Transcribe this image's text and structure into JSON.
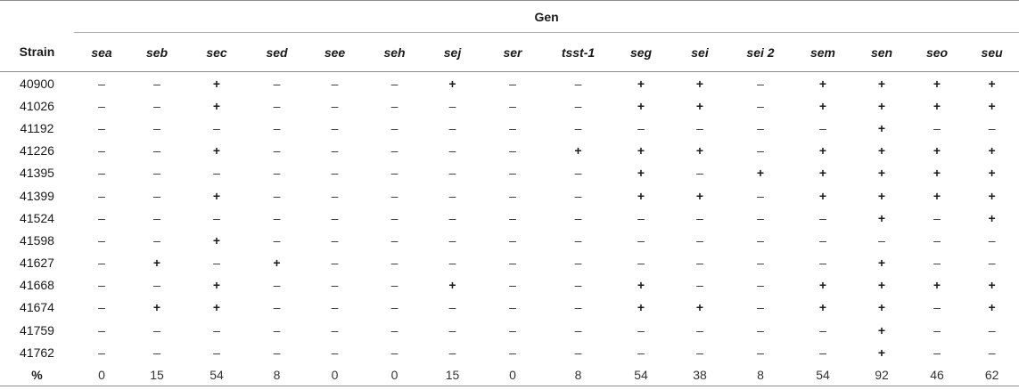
{
  "table": {
    "group_header": "Gen",
    "strain_header": "Strain",
    "genes": [
      "sea",
      "seb",
      "sec",
      "sed",
      "see",
      "seh",
      "sej",
      "ser",
      "tsst-1",
      "seg",
      "sei",
      "sei 2",
      "sem",
      "sen",
      "seo",
      "seu"
    ],
    "rows": [
      {
        "strain": "40900",
        "cells": [
          "–",
          "–",
          "+",
          "–",
          "–",
          "–",
          "+",
          "–",
          "–",
          "+",
          "+",
          "–",
          "+",
          "+",
          "+",
          "+"
        ]
      },
      {
        "strain": "41026",
        "cells": [
          "–",
          "–",
          "+",
          "–",
          "–",
          "–",
          "–",
          "–",
          "–",
          "+",
          "+",
          "–",
          "+",
          "+",
          "+",
          "+"
        ]
      },
      {
        "strain": "41192",
        "cells": [
          "–",
          "–",
          "–",
          "–",
          "–",
          "–",
          "–",
          "–",
          "–",
          "–",
          "–",
          "–",
          "–",
          "+",
          "–",
          "–"
        ]
      },
      {
        "strain": "41226",
        "cells": [
          "–",
          "–",
          "+",
          "–",
          "–",
          "–",
          "–",
          "–",
          "+",
          "+",
          "+",
          "–",
          "+",
          "+",
          "+",
          "+"
        ]
      },
      {
        "strain": "41395",
        "cells": [
          "–",
          "–",
          "–",
          "–",
          "–",
          "–",
          "–",
          "–",
          "–",
          "+",
          "–",
          "+",
          "+",
          "+",
          "+",
          "+"
        ]
      },
      {
        "strain": "41399",
        "cells": [
          "–",
          "–",
          "+",
          "–",
          "–",
          "–",
          "–",
          "–",
          "–",
          "+",
          "+",
          "–",
          "+",
          "+",
          "+",
          "+"
        ]
      },
      {
        "strain": "41524",
        "cells": [
          "–",
          "–",
          "–",
          "–",
          "–",
          "–",
          "–",
          "–",
          "–",
          "–",
          "–",
          "–",
          "–",
          "+",
          "–",
          "+"
        ]
      },
      {
        "strain": "41598",
        "cells": [
          "–",
          "–",
          "+",
          "–",
          "–",
          "–",
          "–",
          "–",
          "–",
          "–",
          "–",
          "–",
          "–",
          "–",
          "–",
          "–"
        ]
      },
      {
        "strain": "41627",
        "cells": [
          "–",
          "+",
          "–",
          "+",
          "–",
          "–",
          "–",
          "–",
          "–",
          "–",
          "–",
          "–",
          "–",
          "+",
          "–",
          "–"
        ]
      },
      {
        "strain": "41668",
        "cells": [
          "–",
          "–",
          "+",
          "–",
          "–",
          "–",
          "+",
          "–",
          "–",
          "+",
          "–",
          "–",
          "+",
          "+",
          "+",
          "+"
        ]
      },
      {
        "strain": "41674",
        "cells": [
          "–",
          "+",
          "+",
          "–",
          "–",
          "–",
          "–",
          "–",
          "–",
          "+",
          "+",
          "–",
          "+",
          "+",
          "–",
          "+"
        ]
      },
      {
        "strain": "41759",
        "cells": [
          "–",
          "–",
          "–",
          "–",
          "–",
          "–",
          "–",
          "–",
          "–",
          "–",
          "–",
          "–",
          "–",
          "+",
          "–",
          "–"
        ]
      },
      {
        "strain": "41762",
        "cells": [
          "–",
          "–",
          "–",
          "–",
          "–",
          "–",
          "–",
          "–",
          "–",
          "–",
          "–",
          "–",
          "–",
          "+",
          "–",
          "–"
        ]
      }
    ],
    "percent_row": {
      "label": "%",
      "values": [
        "0",
        "15",
        "54",
        "8",
        "0",
        "0",
        "15",
        "0",
        "8",
        "54",
        "38",
        "8",
        "54",
        "92",
        "46",
        "62"
      ]
    }
  }
}
